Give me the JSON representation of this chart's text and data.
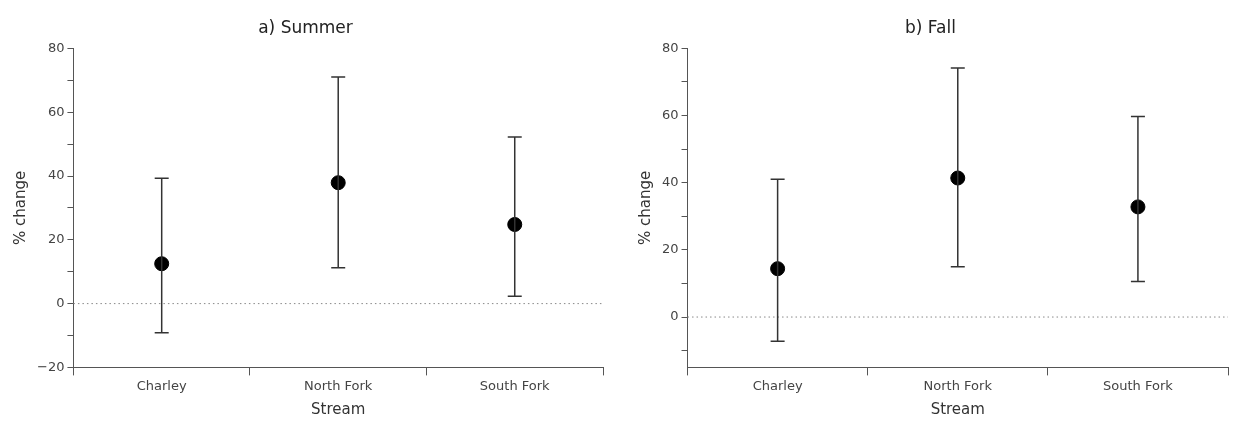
{
  "chart_data": [
    {
      "type": "scatter",
      "title": "a) Summer",
      "xlabel": "Stream",
      "ylabel": "% change",
      "categories": [
        "Charley",
        "North Fork",
        "South Fork"
      ],
      "series": [
        {
          "color": "#000000",
          "values": [
            12.5,
            37.9,
            24.8
          ],
          "errors": [
            [
              -9.1,
              39.3
            ],
            [
              11.2,
              71
            ],
            [
              2.3,
              52.2
            ]
          ]
        }
      ],
      "ylim": [
        -20,
        80
      ],
      "yticks": [
        -20,
        {
          "value": -10,
          "label": null
        },
        0,
        {
          "value": 10,
          "label": null
        },
        20,
        {
          "value": 30,
          "label": null
        },
        40,
        {
          "value": 50,
          "label": null
        },
        60,
        {
          "value": 70,
          "label": null
        },
        80
      ],
      "ref_lines": [
        {
          "axis": "y",
          "value": 0,
          "color": "#888888",
          "line_style": "dotted"
        }
      ],
      "marker": "circle",
      "grid": false,
      "legend": false
    },
    {
      "type": "scatter",
      "title": "b) Fall",
      "xlabel": "Stream",
      "ylabel": "% change",
      "categories": [
        "Charley",
        "North Fork",
        "South Fork"
      ],
      "series": [
        {
          "color": "#000000",
          "values": [
            14.4,
            41.4,
            32.8
          ],
          "errors": [
            [
              -7.2,
              41.0
            ],
            [
              15.0,
              74.2
            ],
            [
              10.6,
              59.7
            ]
          ]
        }
      ],
      "ylim": [
        -15,
        80
      ],
      "yticks": [
        {
          "value": -10,
          "label": null
        },
        0,
        {
          "value": 10,
          "label": null
        },
        20,
        {
          "value": 30,
          "label": null
        },
        40,
        {
          "value": 50,
          "label": null
        },
        60,
        {
          "value": 70,
          "label": null
        },
        80
      ],
      "ref_lines": [
        {
          "axis": "y",
          "value": 0,
          "color": "#888888",
          "line_style": "dotted"
        }
      ],
      "marker": "circle",
      "grid": false,
      "legend": false
    }
  ]
}
